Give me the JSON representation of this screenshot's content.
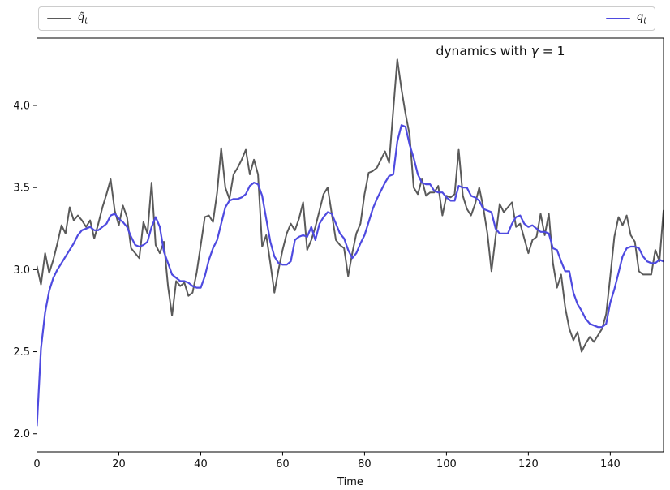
{
  "legend": {
    "items": [
      {
        "id": "qtilde",
        "base": "q̃",
        "sub": "t",
        "color": "#5a5a5a"
      },
      {
        "id": "q",
        "base": "q",
        "sub": "t",
        "color": "#4e4ae0"
      }
    ]
  },
  "annotation": {
    "prefix": "dynamics with ",
    "gamma": "γ",
    "suffix": " = 1",
    "full_text": "dynamics with γ = 1"
  },
  "chart_data": {
    "type": "line",
    "title": "dynamics with γ = 1",
    "xlabel": "Time",
    "ylabel": "",
    "xlim": [
      0,
      153
    ],
    "ylim": [
      1.89,
      4.41
    ],
    "x_ticks": [
      0,
      20,
      40,
      60,
      80,
      100,
      120,
      140
    ],
    "y_ticks": [
      2.0,
      2.5,
      3.0,
      3.5,
      4.0
    ],
    "grid": false,
    "legend_position": "top outside, expanded, 2 columns",
    "x_start": 0,
    "x_step": 1,
    "series": [
      {
        "id": "qtilde",
        "name": "q̃_t",
        "color": "#5a5a5a",
        "linewidth": 2,
        "values": [
          3.02,
          2.91,
          3.1,
          2.98,
          3.06,
          3.16,
          3.27,
          3.22,
          3.38,
          3.3,
          3.33,
          3.3,
          3.26,
          3.3,
          3.19,
          3.28,
          3.38,
          3.46,
          3.55,
          3.36,
          3.27,
          3.39,
          3.32,
          3.13,
          3.1,
          3.07,
          3.29,
          3.22,
          3.53,
          3.15,
          3.1,
          3.17,
          2.9,
          2.72,
          2.93,
          2.9,
          2.92,
          2.84,
          2.86,
          2.98,
          3.15,
          3.32,
          3.33,
          3.29,
          3.47,
          3.74,
          3.5,
          3.43,
          3.58,
          3.62,
          3.67,
          3.73,
          3.58,
          3.67,
          3.58,
          3.14,
          3.21,
          3.04,
          2.86,
          3.0,
          3.12,
          3.22,
          3.28,
          3.24,
          3.31,
          3.41,
          3.12,
          3.18,
          3.26,
          3.36,
          3.46,
          3.5,
          3.34,
          3.18,
          3.15,
          3.13,
          2.96,
          3.1,
          3.22,
          3.28,
          3.46,
          3.59,
          3.6,
          3.62,
          3.67,
          3.72,
          3.65,
          3.97,
          4.28,
          4.1,
          3.95,
          3.82,
          3.5,
          3.46,
          3.55,
          3.45,
          3.47,
          3.47,
          3.51,
          3.33,
          3.45,
          3.44,
          3.46,
          3.73,
          3.45,
          3.37,
          3.33,
          3.4,
          3.5,
          3.38,
          3.22,
          2.99,
          3.2,
          3.4,
          3.35,
          3.38,
          3.41,
          3.26,
          3.28,
          3.19,
          3.1,
          3.18,
          3.2,
          3.34,
          3.21,
          3.34,
          3.04,
          2.89,
          2.97,
          2.77,
          2.64,
          2.57,
          2.62,
          2.5,
          2.55,
          2.59,
          2.56,
          2.6,
          2.64,
          2.73,
          2.96,
          3.2,
          3.32,
          3.27,
          3.33,
          3.21,
          3.17,
          2.99,
          2.97,
          2.97,
          2.97,
          3.12,
          3.05,
          3.36
        ]
      },
      {
        "id": "q",
        "name": "q_t",
        "color": "#4e4ae0",
        "linewidth": 2.2,
        "values": [
          2.05,
          2.52,
          2.74,
          2.87,
          2.95,
          3.0,
          3.04,
          3.08,
          3.12,
          3.16,
          3.21,
          3.24,
          3.25,
          3.26,
          3.24,
          3.24,
          3.26,
          3.28,
          3.33,
          3.34,
          3.31,
          3.29,
          3.26,
          3.2,
          3.15,
          3.14,
          3.15,
          3.17,
          3.26,
          3.32,
          3.26,
          3.11,
          3.04,
          2.97,
          2.95,
          2.93,
          2.93,
          2.92,
          2.9,
          2.89,
          2.89,
          2.96,
          3.06,
          3.13,
          3.18,
          3.28,
          3.38,
          3.42,
          3.43,
          3.43,
          3.44,
          3.46,
          3.51,
          3.53,
          3.52,
          3.45,
          3.31,
          3.17,
          3.08,
          3.04,
          3.03,
          3.03,
          3.05,
          3.18,
          3.2,
          3.21,
          3.2,
          3.26,
          3.18,
          3.28,
          3.32,
          3.35,
          3.34,
          3.28,
          3.22,
          3.19,
          3.12,
          3.07,
          3.1,
          3.16,
          3.21,
          3.29,
          3.37,
          3.43,
          3.48,
          3.53,
          3.57,
          3.58,
          3.78,
          3.88,
          3.87,
          3.76,
          3.68,
          3.58,
          3.53,
          3.52,
          3.52,
          3.48,
          3.47,
          3.47,
          3.44,
          3.42,
          3.42,
          3.51,
          3.5,
          3.5,
          3.45,
          3.44,
          3.42,
          3.37,
          3.36,
          3.35,
          3.25,
          3.22,
          3.22,
          3.22,
          3.28,
          3.32,
          3.33,
          3.28,
          3.26,
          3.27,
          3.25,
          3.23,
          3.23,
          3.22,
          3.13,
          3.12,
          3.05,
          2.99,
          2.99,
          2.86,
          2.79,
          2.75,
          2.7,
          2.67,
          2.66,
          2.65,
          2.65,
          2.67,
          2.8,
          2.88,
          2.98,
          3.08,
          3.13,
          3.14,
          3.14,
          3.13,
          3.08,
          3.05,
          3.04,
          3.04,
          3.06,
          3.05
        ]
      }
    ]
  }
}
